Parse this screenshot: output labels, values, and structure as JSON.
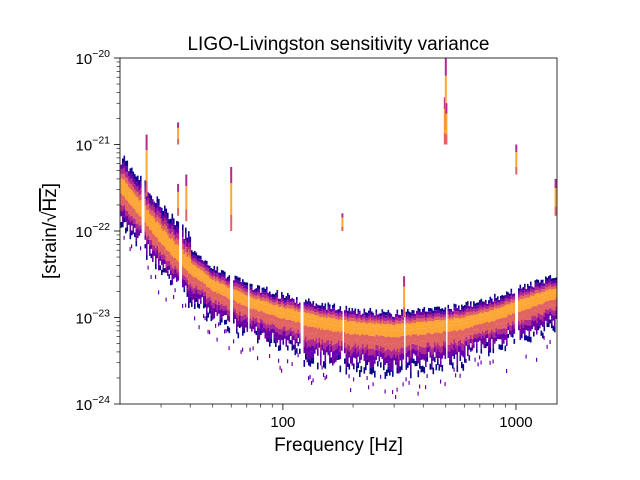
{
  "chart_data": {
    "type": "heatmap",
    "title": "LIGO-Livingston sensitivity variance",
    "xlabel": "Frequency [Hz]",
    "ylabel": {
      "prefix": "[strain/",
      "radical": "√",
      "radicand": "Hz",
      "suffix": "]"
    },
    "x_scale": "log",
    "y_scale": "log",
    "xlim": [
      20,
      1500
    ],
    "ylim": [
      1e-24,
      1e-20
    ],
    "x_ticks": [
      {
        "value": 100,
        "label": "100"
      },
      {
        "value": 1000,
        "label": "1000"
      }
    ],
    "y_ticks": [
      {
        "value": 1e-24,
        "base": "10",
        "exp": "−24"
      },
      {
        "value": 1e-23,
        "base": "10",
        "exp": "−23"
      },
      {
        "value": 1e-22,
        "base": "10",
        "exp": "−22"
      },
      {
        "value": 1e-21,
        "base": "10",
        "exp": "−21"
      },
      {
        "value": 1e-20,
        "base": "10",
        "exp": "−20"
      }
    ],
    "colormap": [
      "#0d0887",
      "#6a00a8",
      "#b12a90",
      "#e16462",
      "#fca636",
      "#f0f921"
    ],
    "spectrum_median": [
      [
        20,
        3.2e-22
      ],
      [
        25,
        1.5e-22
      ],
      [
        30,
        8e-23
      ],
      [
        38,
        4e-23
      ],
      [
        50,
        2.3e-23
      ],
      [
        70,
        1.5e-23
      ],
      [
        100,
        1.1e-23
      ],
      [
        150,
        8.5e-24
      ],
      [
        200,
        7.5e-24
      ],
      [
        300,
        7e-24
      ],
      [
        400,
        7.5e-24
      ],
      [
        600,
        8.5e-24
      ],
      [
        800,
        1.05e-23
      ],
      [
        1000,
        1.3e-23
      ],
      [
        1200,
        1.55e-23
      ],
      [
        1500,
        1.9e-23
      ]
    ],
    "notches": [
      25,
      36,
      60,
      71,
      120,
      180,
      330,
      500,
      1000
    ],
    "lines": [
      {
        "f": 26,
        "lo": 2.5e-22,
        "hi": 1.3e-21
      },
      {
        "f": 35.5,
        "lo": 1e-21,
        "hi": 1.8e-21
      },
      {
        "f": 35.5,
        "lo": 1.5e-22,
        "hi": 3.5e-22
      },
      {
        "f": 38.5,
        "lo": 1.3e-22,
        "hi": 4.5e-22
      },
      {
        "f": 60,
        "lo": 1e-22,
        "hi": 5.5e-22
      },
      {
        "f": 180,
        "lo": 1e-22,
        "hi": 1.6e-22
      },
      {
        "f": 331,
        "lo": 1e-23,
        "hi": 3e-23
      },
      {
        "f": 495,
        "lo": 1e-21,
        "hi": 3.5e-21
      },
      {
        "f": 500,
        "lo": 1.5e-21,
        "hi": 1e-20
      },
      {
        "f": 503,
        "lo": 1e-21,
        "hi": 3e-21
      },
      {
        "f": 1003,
        "lo": 4.5e-22,
        "hi": 1e-21
      },
      {
        "f": 1480,
        "lo": 1.5e-22,
        "hi": 4e-22
      }
    ]
  }
}
